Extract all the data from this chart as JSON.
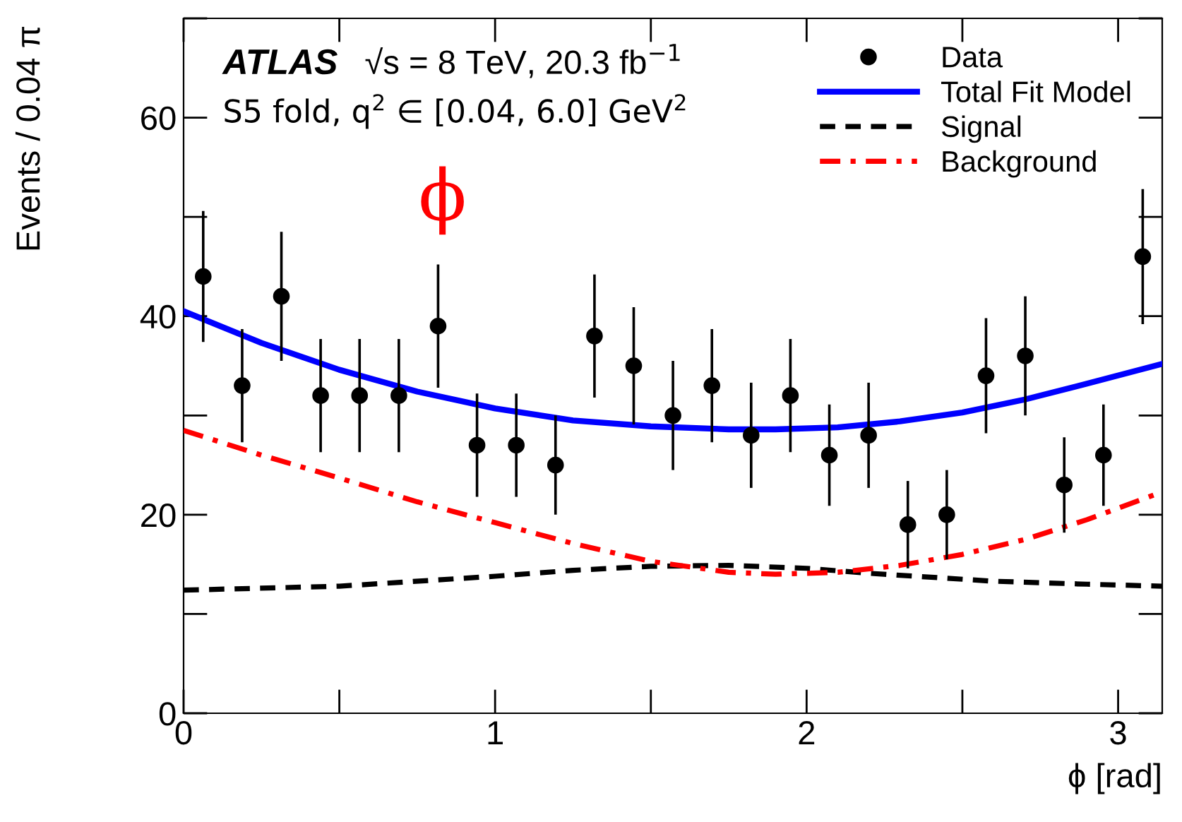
{
  "chart_data": {
    "type": "scatter",
    "ylabel": "Events / 0.04 π",
    "xlabel": "ϕ [rad]",
    "annotations": [
      "ATLAS",
      "√s = 8 TeV, 20.3 fb$^{−1}$",
      "S5 fold, q$^{2}$ ∈ [0.04, 6.0] GeV$^{2}$",
      "ϕ"
    ],
    "xlim": [
      0,
      3.1416
    ],
    "ylim": [
      0,
      70
    ],
    "xticks": [
      0,
      1,
      2,
      3
    ],
    "yticks": [
      0,
      20,
      40,
      60
    ],
    "legend": "top right",
    "grid": false,
    "series": [
      {
        "name": "Data",
        "color": "#000000",
        "marker": "circle",
        "x": [
          0.063,
          0.188,
          0.314,
          0.44,
          0.565,
          0.691,
          0.817,
          0.942,
          1.068,
          1.194,
          1.319,
          1.445,
          1.571,
          1.696,
          1.822,
          1.948,
          2.073,
          2.199,
          2.325,
          2.45,
          2.576,
          2.702,
          2.827,
          2.953,
          3.079
        ],
        "values": [
          44,
          33,
          42,
          32,
          32,
          32,
          39,
          27,
          27,
          25,
          38,
          35,
          30,
          33,
          28,
          32,
          26,
          28,
          19,
          20,
          34,
          36,
          23,
          26,
          46
        ],
        "errors": [
          6.6,
          5.7,
          6.5,
          5.7,
          5.7,
          5.7,
          6.2,
          5.2,
          5.2,
          5.0,
          6.2,
          5.9,
          5.5,
          5.7,
          5.3,
          5.7,
          5.1,
          5.3,
          4.4,
          4.5,
          5.8,
          6.0,
          4.8,
          5.1,
          6.8
        ]
      },
      {
        "name": "Total Fit Model",
        "type": "line",
        "color": "#0000ff",
        "line_style": "solid",
        "x": [
          0,
          0.25,
          0.5,
          0.75,
          1.0,
          1.25,
          1.5,
          1.75,
          1.9,
          2.1,
          2.3,
          2.5,
          2.7,
          2.9,
          3.1416
        ],
        "values": [
          40.5,
          37.3,
          34.6,
          32.4,
          30.7,
          29.5,
          28.9,
          28.6,
          28.6,
          28.8,
          29.4,
          30.3,
          31.6,
          33.2,
          35.2
        ]
      },
      {
        "name": "Signal",
        "type": "line",
        "color": "#000000",
        "line_style": "dashed",
        "x": [
          0,
          0.5,
          1.0,
          1.25,
          1.5,
          1.75,
          2.0,
          2.2,
          2.4,
          2.6,
          2.9,
          3.1416
        ],
        "values": [
          12.4,
          12.8,
          13.8,
          14.4,
          14.8,
          14.9,
          14.6,
          14.1,
          13.7,
          13.3,
          13.0,
          12.8
        ]
      },
      {
        "name": "Background",
        "type": "line",
        "color": "#ff0000",
        "line_style": "dashdot",
        "x": [
          0,
          0.25,
          0.5,
          0.75,
          1.0,
          1.25,
          1.5,
          1.75,
          1.9,
          2.1,
          2.3,
          2.5,
          2.7,
          2.9,
          3.1416
        ],
        "values": [
          28.5,
          26.0,
          23.7,
          21.3,
          19.2,
          17.1,
          15.3,
          14.2,
          14.0,
          14.2,
          14.9,
          16.0,
          17.5,
          19.5,
          22.3
        ]
      }
    ]
  }
}
